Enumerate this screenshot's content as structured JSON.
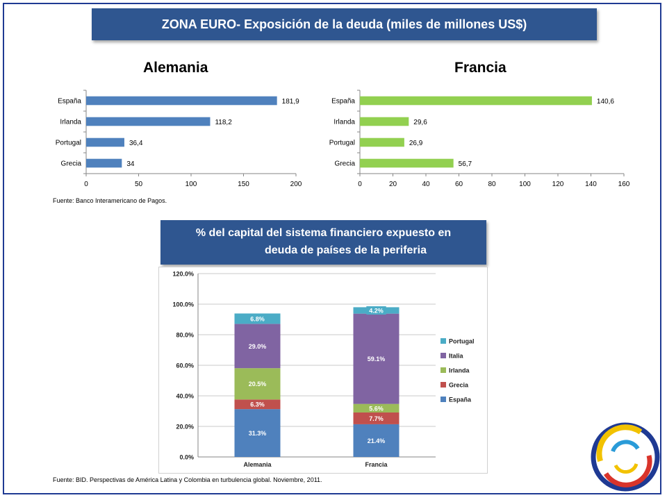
{
  "slide_title": "ZONA EURO- Exposición de la deuda (miles de millones US$)",
  "middle_banner": {
    "line1": "% del capital del sistema financiero expuesto en",
    "line2": "deuda de países de la periferia"
  },
  "source_top": "Fuente: Banco Interamericano de Pagos.",
  "source_bottom": "Fuente: BID. Perspectivas de América Latina y Colombia en turbulencia global. Noviembre, 2011.",
  "colors": {
    "banner": "#2f5690",
    "alemania_bar": "#4f81bd",
    "francia_bar": "#92d050",
    "espana": "#4f81bd",
    "grecia": "#c0504d",
    "irlanda": "#9bbb59",
    "italia": "#8064a2",
    "portugal": "#4bacc6"
  },
  "chart_data": [
    {
      "type": "bar",
      "orientation": "horizontal",
      "title": "Alemania",
      "categories": [
        "España",
        "Irlanda",
        "Portugal",
        "Grecia"
      ],
      "values": [
        181.9,
        118.2,
        36.4,
        34
      ],
      "labels": [
        "181,9",
        "118,2",
        "36,4",
        "34"
      ],
      "xlim": [
        0,
        200
      ],
      "xticks": [
        0,
        50,
        100,
        150,
        200
      ]
    },
    {
      "type": "bar",
      "orientation": "horizontal",
      "title": "Francia",
      "categories": [
        "España",
        "Irlanda",
        "Portugal",
        "Grecia"
      ],
      "values": [
        140.6,
        29.6,
        26.9,
        56.7
      ],
      "labels": [
        "140,6",
        "29,6",
        "26,9",
        "56,7"
      ],
      "xlim": [
        0,
        160
      ],
      "xticks": [
        0,
        20,
        40,
        60,
        80,
        100,
        120,
        140,
        160
      ]
    },
    {
      "type": "bar",
      "stacked": true,
      "categories": [
        "Alemania",
        "Francia"
      ],
      "series": [
        {
          "name": "España",
          "values": [
            31.3,
            21.4
          ],
          "labels": [
            "31.3%",
            "21.4%"
          ]
        },
        {
          "name": "Grecia",
          "values": [
            6.3,
            7.7
          ],
          "labels": [
            "6.3%",
            "7.7%"
          ]
        },
        {
          "name": "Irlanda",
          "values": [
            20.5,
            5.6
          ],
          "labels": [
            "20.5%",
            "5.6%"
          ]
        },
        {
          "name": "Italia",
          "values": [
            29.0,
            59.1
          ],
          "labels": [
            "29.0%",
            "59.1%"
          ]
        },
        {
          "name": "Portugal",
          "values": [
            6.8,
            4.2
          ],
          "labels": [
            "6.8%",
            "4.2%"
          ]
        }
      ],
      "legend": [
        "Portugal",
        "Italia",
        "Irlanda",
        "Grecia",
        "España"
      ],
      "ylim": [
        0,
        120
      ],
      "yticks": [
        "0.0%",
        "20.0%",
        "40.0%",
        "60.0%",
        "80.0%",
        "100.0%",
        "120.0%"
      ]
    }
  ]
}
